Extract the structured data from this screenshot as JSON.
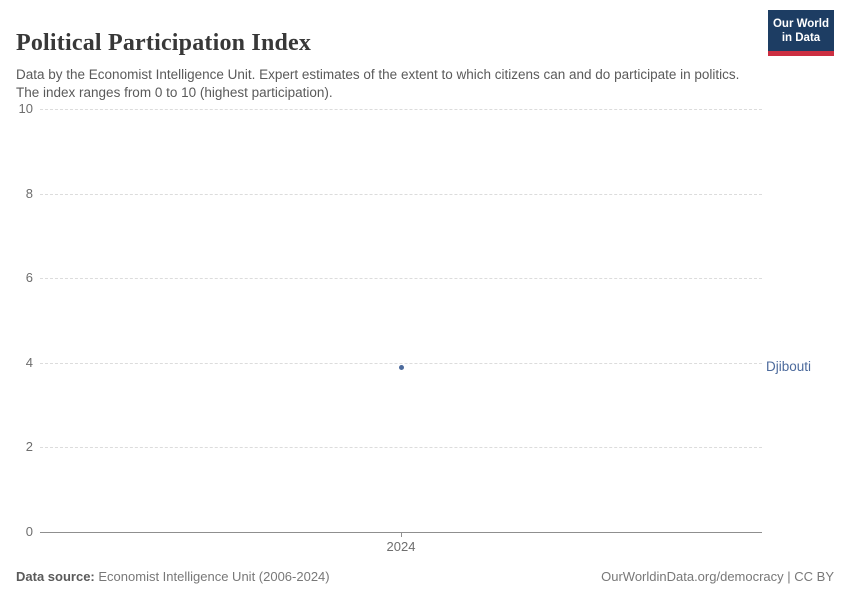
{
  "header": {
    "title": "Political Participation Index",
    "subtitle": "Data by the Economist Intelligence Unit. Expert estimates of the extent to which citizens can and do participate in politics. The index ranges from 0 to 10 (highest participation)."
  },
  "logo": {
    "line1": "Our World",
    "line2": "in Data",
    "bg_color": "#1d3d63",
    "accent_color": "#cc2e41"
  },
  "chart_data": {
    "type": "scatter",
    "title": "Political Participation Index",
    "x": [
      2024
    ],
    "series": [
      {
        "name": "Djibouti",
        "values": [
          3.89
        ],
        "color": "#4c6a9c"
      }
    ],
    "xlabel": "",
    "ylabel": "",
    "ylim": [
      0,
      10
    ],
    "xlim": [
      2023.5,
      2024.5
    ],
    "yticks": [
      0,
      2,
      4,
      6,
      8,
      10
    ],
    "xticks": [
      2024
    ],
    "grid": "horizontal-dashed",
    "legend_position": "label-right-of-plot",
    "colors": {
      "gridline": "#dcdcdc",
      "zero_line": "#8f8f8f",
      "tick_label": "#6e6e6e"
    }
  },
  "footer": {
    "source_label": "Data source:",
    "source_text": "Economist Intelligence Unit (2006-2024)",
    "credit": "OurWorldinData.org/democracy | CC BY"
  }
}
